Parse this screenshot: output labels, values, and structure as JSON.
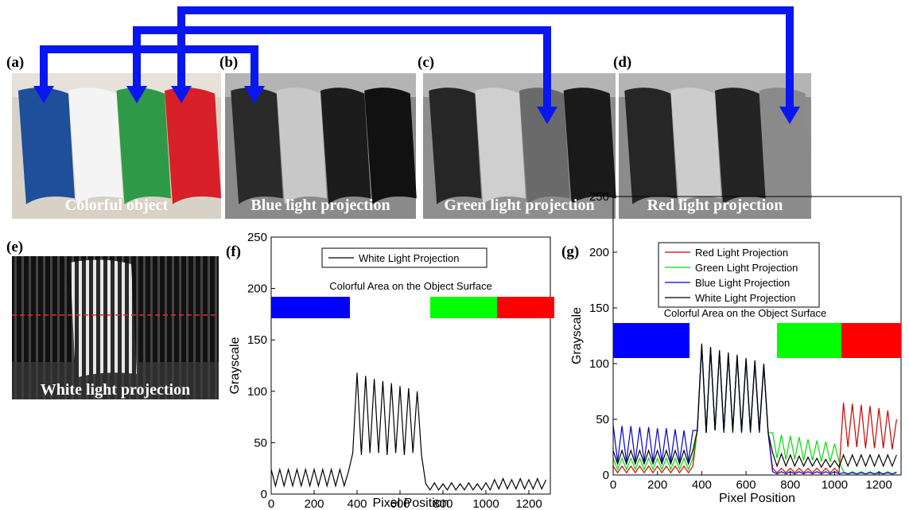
{
  "panels": [
    {
      "label": "(a)",
      "caption": "Colorful object"
    },
    {
      "label": "(b)",
      "caption": "Blue light projection"
    },
    {
      "label": "(c)",
      "caption": "Green light projection"
    },
    {
      "label": "(d)",
      "caption": "Red light projection"
    },
    {
      "label": "(e)",
      "caption": "White light projection"
    }
  ],
  "chart_data": [
    {
      "type": "line",
      "panel_label": "(f)",
      "annotation": "Colorful Area on the Object Surface",
      "x_label": "Pixel Position",
      "y_label": "Grayscale",
      "xlim": [
        0,
        1300
      ],
      "ylim": [
        0,
        250
      ],
      "xticks": [
        0,
        200,
        400,
        600,
        800,
        1000,
        1200
      ],
      "yticks": [
        0,
        50,
        100,
        150,
        200,
        250
      ],
      "x": [
        0,
        20,
        40,
        60,
        80,
        100,
        120,
        140,
        160,
        180,
        200,
        220,
        240,
        260,
        280,
        300,
        320,
        340,
        360,
        380,
        400,
        420,
        440,
        460,
        480,
        500,
        520,
        540,
        560,
        580,
        600,
        620,
        640,
        660,
        680,
        700,
        720,
        740,
        760,
        780,
        800,
        820,
        840,
        860,
        880,
        900,
        920,
        940,
        960,
        980,
        1000,
        1020,
        1040,
        1060,
        1080,
        1100,
        1120,
        1140,
        1160,
        1180,
        1200,
        1220,
        1240,
        1260,
        1280
      ],
      "series": [
        {
          "name": "White Light Projection",
          "color": "#000000",
          "values": [
            24,
            8,
            24,
            8,
            24,
            8,
            24,
            8,
            24,
            8,
            24,
            8,
            24,
            8,
            24,
            8,
            24,
            8,
            22,
            40,
            118,
            38,
            115,
            40,
            112,
            40,
            110,
            38,
            108,
            40,
            105,
            38,
            103,
            40,
            100,
            38,
            10,
            4,
            11,
            4,
            10,
            4,
            11,
            4,
            10,
            4,
            11,
            4,
            10,
            4,
            11,
            4,
            14,
            5,
            15,
            5,
            14,
            5,
            15,
            5,
            14,
            5,
            15,
            5,
            14
          ]
        }
      ]
    },
    {
      "type": "line",
      "panel_label": "(g)",
      "annotation": "Colorful Area on the Object Surface",
      "x_label": "Pixel Position",
      "y_label": "Grayscale",
      "xlim": [
        0,
        1300
      ],
      "ylim": [
        0,
        250
      ],
      "xticks": [
        0,
        200,
        400,
        600,
        800,
        1000,
        1200
      ],
      "yticks": [
        0,
        50,
        100,
        150,
        200,
        250
      ],
      "x": [
        0,
        20,
        40,
        60,
        80,
        100,
        120,
        140,
        160,
        180,
        200,
        220,
        240,
        260,
        280,
        300,
        320,
        340,
        360,
        380,
        400,
        420,
        440,
        460,
        480,
        500,
        520,
        540,
        560,
        580,
        600,
        620,
        640,
        660,
        680,
        700,
        720,
        740,
        760,
        780,
        800,
        820,
        840,
        860,
        880,
        900,
        920,
        940,
        960,
        980,
        1000,
        1020,
        1040,
        1060,
        1080,
        1100,
        1120,
        1140,
        1160,
        1180,
        1200,
        1220,
        1240,
        1260,
        1280
      ],
      "series": [
        {
          "name": "Red Light Projection",
          "color": "#cc0000",
          "values": [
            8,
            2,
            8,
            2,
            8,
            2,
            8,
            2,
            8,
            2,
            8,
            2,
            8,
            2,
            8,
            2,
            8,
            2,
            8,
            40,
            115,
            38,
            112,
            40,
            110,
            38,
            108,
            40,
            106,
            38,
            103,
            40,
            100,
            38,
            98,
            38,
            6,
            2,
            6,
            2,
            6,
            2,
            6,
            2,
            6,
            2,
            6,
            2,
            6,
            2,
            6,
            2,
            65,
            25,
            64,
            25,
            63,
            24,
            62,
            24,
            60,
            24,
            58,
            23,
            50
          ]
        },
        {
          "name": "Green Light Projection",
          "color": "#00dd00",
          "values": [
            15,
            5,
            15,
            5,
            15,
            5,
            15,
            5,
            15,
            5,
            15,
            5,
            15,
            5,
            15,
            5,
            15,
            5,
            15,
            40,
            117,
            38,
            114,
            40,
            111,
            38,
            109,
            40,
            107,
            38,
            104,
            40,
            102,
            38,
            99,
            38,
            38,
            15,
            36,
            14,
            35,
            14,
            34,
            13,
            32,
            13,
            31,
            12,
            30,
            12,
            28,
            12,
            3,
            1,
            3,
            1,
            3,
            1,
            3,
            1,
            3,
            1,
            3,
            1,
            3
          ]
        },
        {
          "name": "Blue Light Projection",
          "color": "#0000cc",
          "values": [
            45,
            12,
            44,
            12,
            44,
            12,
            43,
            12,
            43,
            12,
            42,
            12,
            42,
            12,
            41,
            12,
            40,
            12,
            40,
            40,
            116,
            38,
            113,
            40,
            111,
            38,
            108,
            40,
            106,
            38,
            103,
            40,
            101,
            38,
            98,
            38,
            3,
            1,
            3,
            1,
            3,
            1,
            3,
            1,
            3,
            1,
            3,
            1,
            3,
            1,
            3,
            1,
            2,
            1,
            2,
            1,
            2,
            1,
            2,
            1,
            2,
            1,
            2,
            1,
            2
          ]
        },
        {
          "name": "White Light Projection",
          "color": "#000000",
          "values": [
            22,
            10,
            22,
            10,
            22,
            10,
            22,
            10,
            22,
            10,
            22,
            10,
            22,
            10,
            22,
            10,
            22,
            10,
            22,
            40,
            118,
            38,
            115,
            40,
            112,
            40,
            110,
            38,
            108,
            40,
            105,
            38,
            103,
            40,
            100,
            38,
            20,
            8,
            19,
            8,
            18,
            8,
            17,
            8,
            16,
            8,
            15,
            7,
            14,
            7,
            13,
            7,
            18,
            8,
            18,
            8,
            18,
            8,
            18,
            8,
            18,
            8,
            18,
            8,
            18
          ]
        }
      ]
    }
  ]
}
